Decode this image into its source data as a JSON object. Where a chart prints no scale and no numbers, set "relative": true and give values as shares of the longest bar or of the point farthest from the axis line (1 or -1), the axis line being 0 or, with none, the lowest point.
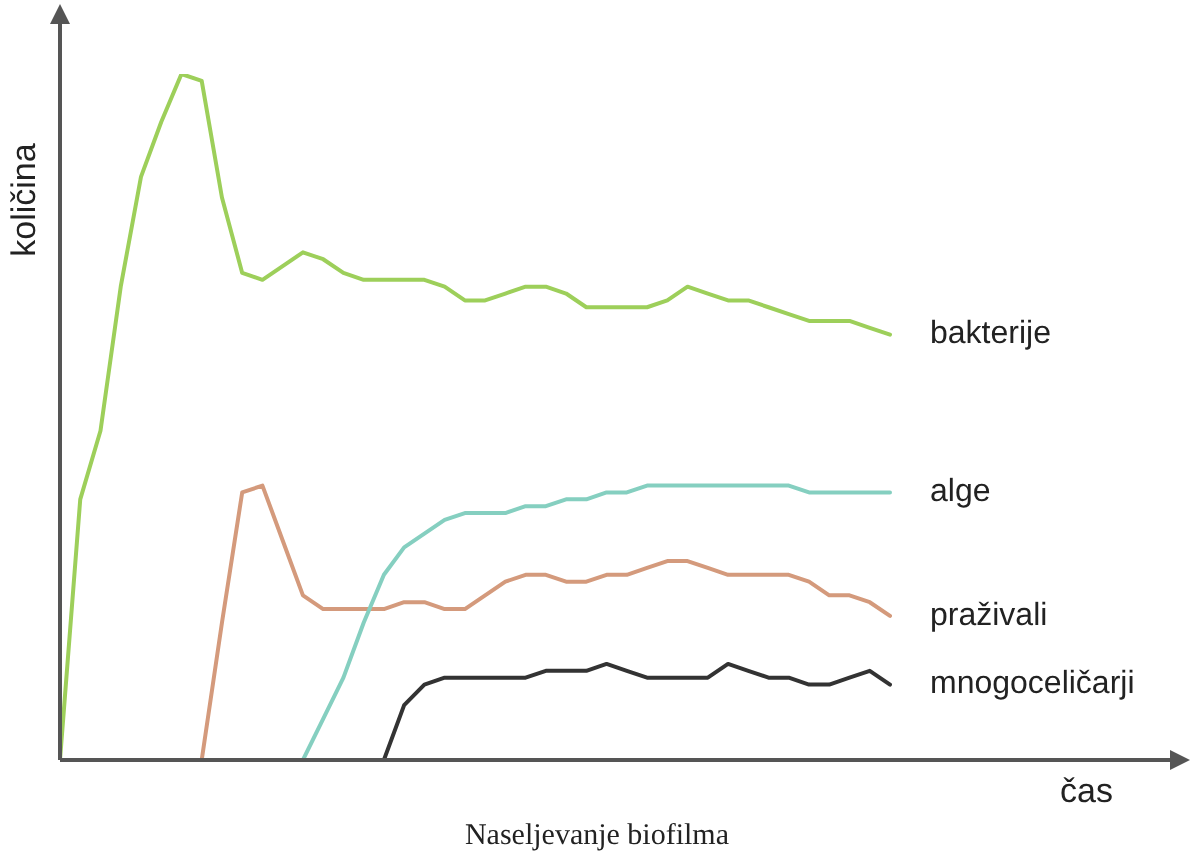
{
  "chart_data": {
    "type": "line",
    "title": "Naseljevanje biofilma",
    "xlabel": "čas",
    "ylabel": "količina",
    "relative": true,
    "marker": "none",
    "line_style": "solid",
    "categories": [
      null,
      null,
      null,
      null,
      null,
      null,
      null,
      null,
      null,
      null,
      null,
      null,
      null,
      null,
      null,
      null,
      null,
      null,
      null,
      null,
      null,
      null,
      null,
      null,
      null,
      null,
      null,
      null,
      null,
      null,
      null,
      null,
      null,
      null,
      null,
      null,
      null,
      null,
      null,
      null,
      null,
      null
    ],
    "series": [
      {
        "name": "bakterije",
        "color": "#9dcf5a",
        "values": [
          0,
          0.38,
          0.48,
          0.69,
          0.85,
          0.93,
          1,
          0.99,
          0.82,
          0.71,
          0.7,
          0.72,
          0.74,
          0.73,
          0.71,
          0.7,
          0.7,
          0.7,
          0.7,
          0.69,
          0.67,
          0.67,
          0.68,
          0.69,
          0.69,
          0.68,
          0.66,
          0.66,
          0.66,
          0.66,
          0.67,
          0.69,
          0.68,
          0.67,
          0.67,
          0.66,
          0.65,
          0.64,
          0.64,
          0.64,
          0.63,
          0.62
        ]
      },
      {
        "name": "alge",
        "color": "#85cfc0",
        "values": [
          null,
          null,
          null,
          null,
          null,
          null,
          null,
          null,
          null,
          null,
          null,
          null,
          0,
          0.06,
          0.12,
          0.2,
          0.27,
          0.31,
          0.33,
          0.35,
          0.36,
          0.36,
          0.36,
          0.37,
          0.37,
          0.38,
          0.38,
          0.39,
          0.39,
          0.4,
          0.4,
          0.4,
          0.4,
          0.4,
          0.4,
          0.4,
          0.4,
          0.39,
          0.39,
          0.39,
          0.39,
          0.39
        ]
      },
      {
        "name": "praživali",
        "color": "#d49a7c",
        "values": [
          null,
          null,
          null,
          null,
          null,
          null,
          null,
          0,
          0.2,
          0.39,
          0.4,
          0.32,
          0.24,
          0.22,
          0.22,
          0.22,
          0.22,
          0.23,
          0.23,
          0.22,
          0.22,
          0.24,
          0.26,
          0.27,
          0.27,
          0.26,
          0.26,
          0.27,
          0.27,
          0.28,
          0.29,
          0.29,
          0.28,
          0.27,
          0.27,
          0.27,
          0.27,
          0.26,
          0.24,
          0.24,
          0.23,
          0.21
        ]
      },
      {
        "name": "mnogoceličarji",
        "color": "#333333",
        "values": [
          null,
          null,
          null,
          null,
          null,
          null,
          null,
          null,
          null,
          null,
          null,
          null,
          null,
          null,
          null,
          null,
          0,
          0.08,
          0.11,
          0.12,
          0.12,
          0.12,
          0.12,
          0.12,
          0.13,
          0.13,
          0.13,
          0.14,
          0.13,
          0.12,
          0.12,
          0.12,
          0.12,
          0.14,
          0.13,
          0.12,
          0.12,
          0.11,
          0.11,
          0.12,
          0.13,
          0.11
        ]
      }
    ]
  }
}
